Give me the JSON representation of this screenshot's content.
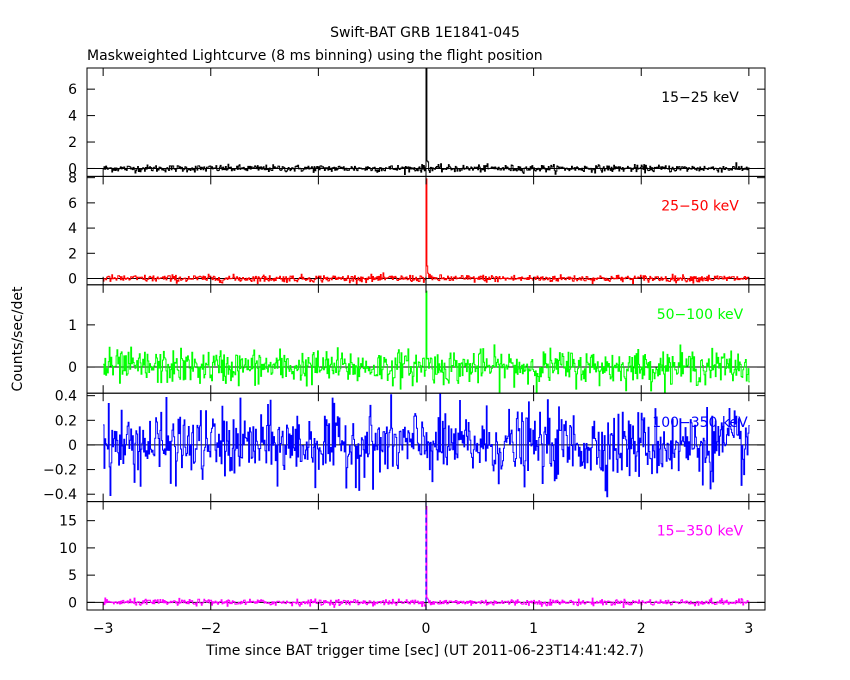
{
  "chart_data": {
    "type": "line",
    "title": "Swift-BAT GRB 1E1841-045",
    "subtitle": "Maskweighted Lightcurve (8 ms binning) using the flight position",
    "xlabel": "Time since BAT trigger time [sec] (UT 2011-06-23T14:41:42.7)",
    "ylabel": "Counts/sec/det",
    "xlim": [
      -3.15,
      3.15
    ],
    "xticks": [
      -3,
      -2,
      -1,
      0,
      1,
      2,
      3
    ],
    "bin_width_s": 0.008,
    "grid": false,
    "panels": [
      {
        "label": "15-25 keV",
        "color": "#000000",
        "ylim": [
          -0.6,
          7.6
        ],
        "yticks": [
          0,
          2,
          4,
          6
        ],
        "noise_sigma": 0.13,
        "peak": {
          "x": 0.0,
          "y": 7.6
        },
        "tail": [
          0.65,
          0.45
        ],
        "line": false
      },
      {
        "label": "25-50 keV",
        "color": "#ff0000",
        "ylim": [
          -0.5,
          8.1
        ],
        "yticks": [
          0,
          2,
          4,
          6,
          8
        ],
        "noise_sigma": 0.14,
        "peak": {
          "x": 0.0,
          "y": 7.9
        },
        "tail": [
          0.9,
          0.4
        ],
        "line": false
      },
      {
        "label": "50-100 keV",
        "color": "#00ff00",
        "ylim": [
          -0.62,
          1.95
        ],
        "yticks": [
          0,
          1
        ],
        "noise_sigma": 0.2,
        "peak": {
          "x": 0.0,
          "y": 1.8
        },
        "tail": [
          0.4,
          0.25
        ],
        "line": false
      },
      {
        "label": "100-350 keV",
        "color": "#0000ff",
        "ylim": [
          -0.46,
          0.42
        ],
        "yticks": [
          -0.4,
          -0.2,
          0,
          0.2,
          0.4
        ],
        "noise_sigma": 0.14,
        "peak": {
          "x": 0.0,
          "y": 0.1
        },
        "tail": [
          0.0,
          0.0
        ],
        "line": false
      },
      {
        "label": "15-350 keV",
        "color": "#ff00ff",
        "ylim": [
          -1.4,
          18.5
        ],
        "yticks": [
          0,
          5,
          10,
          15
        ],
        "noise_sigma": 0.28,
        "peak": {
          "x": 0.0,
          "y": 17.6
        },
        "tail": [
          1.3,
          0.6
        ],
        "line": {
          "x": 0.0,
          "color": "#0000ff",
          "style": "dashed"
        }
      }
    ]
  }
}
